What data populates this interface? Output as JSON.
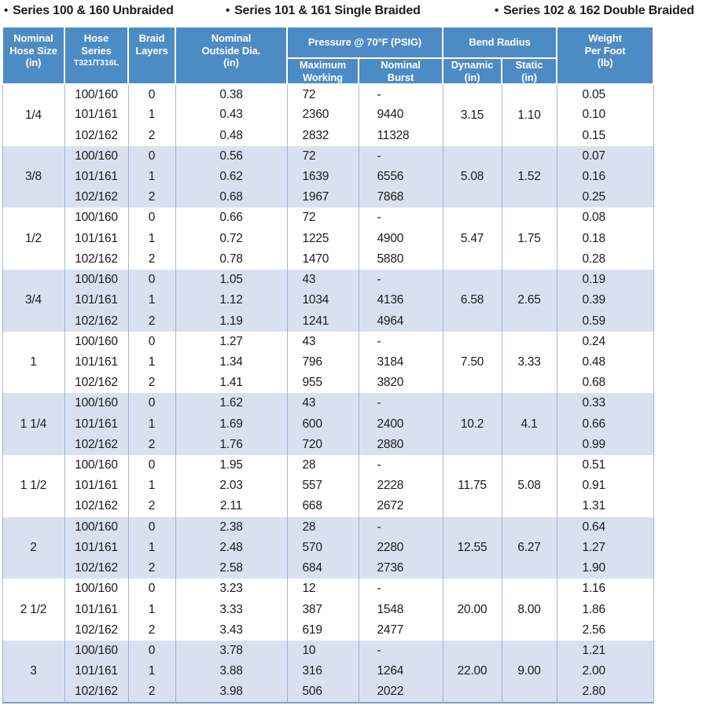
{
  "legend": {
    "bullet": "•",
    "items": [
      {
        "label": "Series 100 & 160 Unbraided"
      },
      {
        "label": "Series 101 & 161 Single Braided"
      },
      {
        "label": "Series 102 & 162 Double Braided"
      }
    ]
  },
  "colors": {
    "header_blue": "#4d8bc5",
    "shaded_row": "#d9e1f1",
    "grid_line": "#a6badb",
    "text": "#1b1b1b"
  },
  "table": {
    "headers": {
      "size": "Nominal\nHose Size\n(in)",
      "series": "Hose\nSeries",
      "series_sub": "T321/T316L",
      "braid": "Braid\nLayers",
      "od": "Nominal\nOutside Dia.\n(in)",
      "pressure": "Pressure @ 70°F (PSIG)",
      "max_working": "Maximum\nWorking",
      "burst": "Nominal\nBurst",
      "bend": "Bend Radius",
      "dynamic": "Dynamic\n(in)",
      "static": "Static\n(in)",
      "weight": "Weight\nPer Foot\n(lb)"
    },
    "groups": [
      {
        "size": "1/4",
        "dynamic": "3.15",
        "static": "1.10",
        "rows": [
          {
            "series": "100/160",
            "layers": "0",
            "od": "0.38",
            "working": "72",
            "burst": "-",
            "weight": "0.05"
          },
          {
            "series": "101/161",
            "layers": "1",
            "od": "0.43",
            "working": "2360",
            "burst": "9440",
            "weight": "0.10"
          },
          {
            "series": "102/162",
            "layers": "2",
            "od": "0.48",
            "working": "2832",
            "burst": "11328",
            "weight": "0.15"
          }
        ]
      },
      {
        "size": "3/8",
        "dynamic": "5.08",
        "static": "1.52",
        "rows": [
          {
            "series": "100/160",
            "layers": "0",
            "od": "0.56",
            "working": "72",
            "burst": "-",
            "weight": "0.07"
          },
          {
            "series": "101/161",
            "layers": "1",
            "od": "0.62",
            "working": "1639",
            "burst": "6556",
            "weight": "0.16"
          },
          {
            "series": "102/162",
            "layers": "2",
            "od": "0.68",
            "working": "1967",
            "burst": "7868",
            "weight": "0.25"
          }
        ]
      },
      {
        "size": "1/2",
        "dynamic": "5.47",
        "static": "1.75",
        "rows": [
          {
            "series": "100/160",
            "layers": "0",
            "od": "0.66",
            "working": "72",
            "burst": "-",
            "weight": "0.08"
          },
          {
            "series": "101/161",
            "layers": "1",
            "od": "0.72",
            "working": "1225",
            "burst": "4900",
            "weight": "0.18"
          },
          {
            "series": "102/162",
            "layers": "2",
            "od": "0.78",
            "working": "1470",
            "burst": "5880",
            "weight": "0.28"
          }
        ]
      },
      {
        "size": "3/4",
        "dynamic": "6.58",
        "static": "2.65",
        "rows": [
          {
            "series": "100/160",
            "layers": "0",
            "od": "1.05",
            "working": "43",
            "burst": "-",
            "weight": "0.19"
          },
          {
            "series": "101/161",
            "layers": "1",
            "od": "1.12",
            "working": "1034",
            "burst": "4136",
            "weight": "0.39"
          },
          {
            "series": "102/162",
            "layers": "2",
            "od": "1.19",
            "working": "1241",
            "burst": "4964",
            "weight": "0.59"
          }
        ]
      },
      {
        "size": "1",
        "dynamic": "7.50",
        "static": "3.33",
        "rows": [
          {
            "series": "100/160",
            "layers": "0",
            "od": "1.27",
            "working": "43",
            "burst": "-",
            "weight": "0.24"
          },
          {
            "series": "101/161",
            "layers": "1",
            "od": "1.34",
            "working": "796",
            "burst": "3184",
            "weight": "0.48"
          },
          {
            "series": "102/162",
            "layers": "2",
            "od": "1.41",
            "working": "955",
            "burst": "3820",
            "weight": "0.68"
          }
        ]
      },
      {
        "size": "1 1/4",
        "dynamic": "10.2",
        "static": "4.1",
        "rows": [
          {
            "series": "100/160",
            "layers": "0",
            "od": "1.62",
            "working": "43",
            "burst": "-",
            "weight": "0.33"
          },
          {
            "series": "101/161",
            "layers": "1",
            "od": "1.69",
            "working": "600",
            "burst": "2400",
            "weight": "0.66"
          },
          {
            "series": "102/162",
            "layers": "2",
            "od": "1.76",
            "working": "720",
            "burst": "2880",
            "weight": "0.99"
          }
        ]
      },
      {
        "size": "1 1/2",
        "dynamic": "11.75",
        "static": "5.08",
        "rows": [
          {
            "series": "100/160",
            "layers": "0",
            "od": "1.95",
            "working": "28",
            "burst": "-",
            "weight": "0.51"
          },
          {
            "series": "101/161",
            "layers": "1",
            "od": "2.03",
            "working": "557",
            "burst": "2228",
            "weight": "0.91"
          },
          {
            "series": "102/162",
            "layers": "2",
            "od": "2.11",
            "working": "668",
            "burst": "2672",
            "weight": "1.31"
          }
        ]
      },
      {
        "size": "2",
        "dynamic": "12.55",
        "static": "6.27",
        "rows": [
          {
            "series": "100/160",
            "layers": "0",
            "od": "2.38",
            "working": "28",
            "burst": "-",
            "weight": "0.64"
          },
          {
            "series": "101/161",
            "layers": "1",
            "od": "2.48",
            "working": "570",
            "burst": "2280",
            "weight": "1.27"
          },
          {
            "series": "102/162",
            "layers": "2",
            "od": "2.58",
            "working": "684",
            "burst": "2736",
            "weight": "1.90"
          }
        ]
      },
      {
        "size": "2 1/2",
        "dynamic": "20.00",
        "static": "8.00",
        "rows": [
          {
            "series": "100/160",
            "layers": "0",
            "od": "3.23",
            "working": "12",
            "burst": "-",
            "weight": "1.16"
          },
          {
            "series": "101/161",
            "layers": "1",
            "od": "3.33",
            "working": "387",
            "burst": "1548",
            "weight": "1.86"
          },
          {
            "series": "102/162",
            "layers": "2",
            "od": "3.43",
            "working": "619",
            "burst": "2477",
            "weight": "2.56"
          }
        ]
      },
      {
        "size": "3",
        "dynamic": "22.00",
        "static": "9.00",
        "rows": [
          {
            "series": "100/160",
            "layers": "0",
            "od": "3.78",
            "working": "10",
            "burst": "-",
            "weight": "1.21"
          },
          {
            "series": "101/161",
            "layers": "1",
            "od": "3.88",
            "working": "316",
            "burst": "1264",
            "weight": "2.00"
          },
          {
            "series": "102/162",
            "layers": "2",
            "od": "3.98",
            "working": "506",
            "burst": "2022",
            "weight": "2.80"
          }
        ]
      }
    ]
  }
}
